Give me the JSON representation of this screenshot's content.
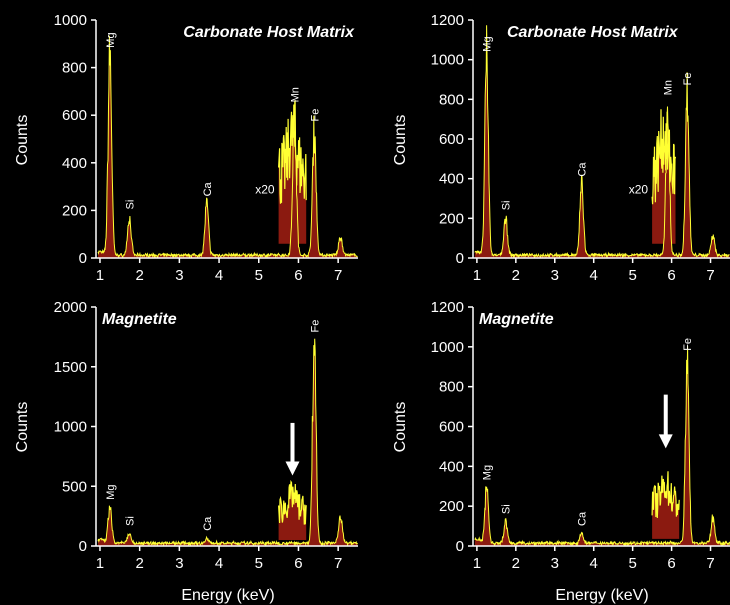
{
  "figure": {
    "colors": {
      "background": "#000000",
      "axis": "#ffffff",
      "fill": "#8b1a10",
      "line": "#ffff33",
      "text": "#ffffff"
    },
    "x_axis_label": "Energy (keV)",
    "y_axis_label": "Counts"
  },
  "chart_data": [
    {
      "type": "area",
      "title": "Carbonate Host Matrix",
      "xlabel": "",
      "ylabel": "Counts",
      "xlim": [
        0.9,
        7.5
      ],
      "ylim": [
        0,
        1000
      ],
      "xticks": [
        "1",
        "2",
        "3",
        "4",
        "5",
        "6",
        "7"
      ],
      "yticks": [
        "0",
        "200",
        "400",
        "600",
        "800",
        "1000"
      ],
      "peaks": [
        {
          "label": "Mg",
          "x": 1.25,
          "y": 850
        },
        {
          "label": "Si",
          "x": 1.74,
          "y": 170
        },
        {
          "label": "Ca",
          "x": 3.69,
          "y": 225
        },
        {
          "label": "Mn",
          "x": 5.9,
          "y": 620
        },
        {
          "label": "Fe",
          "x": 6.4,
          "y": 540
        },
        {
          "label": "",
          "x": 7.06,
          "y": 90
        }
      ],
      "inset": {
        "label": "x20",
        "x_range": [
          5.5,
          6.2
        ],
        "level": 600
      }
    },
    {
      "type": "area",
      "title": "Carbonate Host Matrix",
      "xlabel": "",
      "ylabel": "Counts",
      "xlim": [
        0.9,
        7.5
      ],
      "ylim": [
        0,
        1200
      ],
      "xticks": [
        "1",
        "2",
        "3",
        "4",
        "5",
        "6",
        "7"
      ],
      "yticks": [
        "0",
        "200",
        "400",
        "600",
        "800",
        "1000",
        "1200"
      ],
      "peaks": [
        {
          "label": "Mg",
          "x": 1.25,
          "y": 1000
        },
        {
          "label": "Si",
          "x": 1.74,
          "y": 200
        },
        {
          "label": "Ca",
          "x": 3.69,
          "y": 370
        },
        {
          "label": "Mn",
          "x": 5.9,
          "y": 780
        },
        {
          "label": "Fe",
          "x": 6.4,
          "y": 830
        },
        {
          "label": "",
          "x": 7.06,
          "y": 120
        }
      ],
      "inset": {
        "label": "x20",
        "x_range": [
          5.5,
          6.1
        ],
        "level": 720
      }
    },
    {
      "type": "area",
      "title": "Magnetite",
      "xlabel": "Energy (keV)",
      "ylabel": "Counts",
      "xlim": [
        0.9,
        7.5
      ],
      "ylim": [
        0,
        2000
      ],
      "xticks": [
        "1",
        "2",
        "3",
        "4",
        "5",
        "6",
        "7"
      ],
      "yticks": [
        "0",
        "500",
        "1000",
        "1500",
        "2000"
      ],
      "peaks": [
        {
          "label": "Mg",
          "x": 1.25,
          "y": 320
        },
        {
          "label": "Si",
          "x": 1.74,
          "y": 100
        },
        {
          "label": "Ca",
          "x": 3.69,
          "y": 60
        },
        {
          "label": "Fe",
          "x": 6.4,
          "y": 1720
        },
        {
          "label": "",
          "x": 7.06,
          "y": 260
        }
      ],
      "inset": {
        "label": "",
        "x_range": [
          5.5,
          6.2
        ],
        "level": 500
      },
      "arrow": {
        "x": 5.85,
        "y_from": 1030,
        "y_to": 590
      }
    },
    {
      "type": "area",
      "title": "Magnetite",
      "xlabel": "Energy (keV)",
      "ylabel": "Counts",
      "xlim": [
        0.9,
        7.5
      ],
      "ylim": [
        0,
        1200
      ],
      "xticks": [
        "1",
        "2",
        "3",
        "4",
        "5",
        "6",
        "7"
      ],
      "yticks": [
        "0",
        "200",
        "400",
        "600",
        "800",
        "1000",
        "1200"
      ],
      "peaks": [
        {
          "label": "Mg",
          "x": 1.25,
          "y": 290
        },
        {
          "label": "Si",
          "x": 1.74,
          "y": 120
        },
        {
          "label": "Ca",
          "x": 3.69,
          "y": 60
        },
        {
          "label": "Fe",
          "x": 6.4,
          "y": 940
        },
        {
          "label": "",
          "x": 7.06,
          "y": 140
        }
      ],
      "inset": {
        "label": "",
        "x_range": [
          5.5,
          6.2
        ],
        "level": 360
      },
      "arrow": {
        "x": 5.85,
        "y_from": 760,
        "y_to": 490
      }
    }
  ]
}
